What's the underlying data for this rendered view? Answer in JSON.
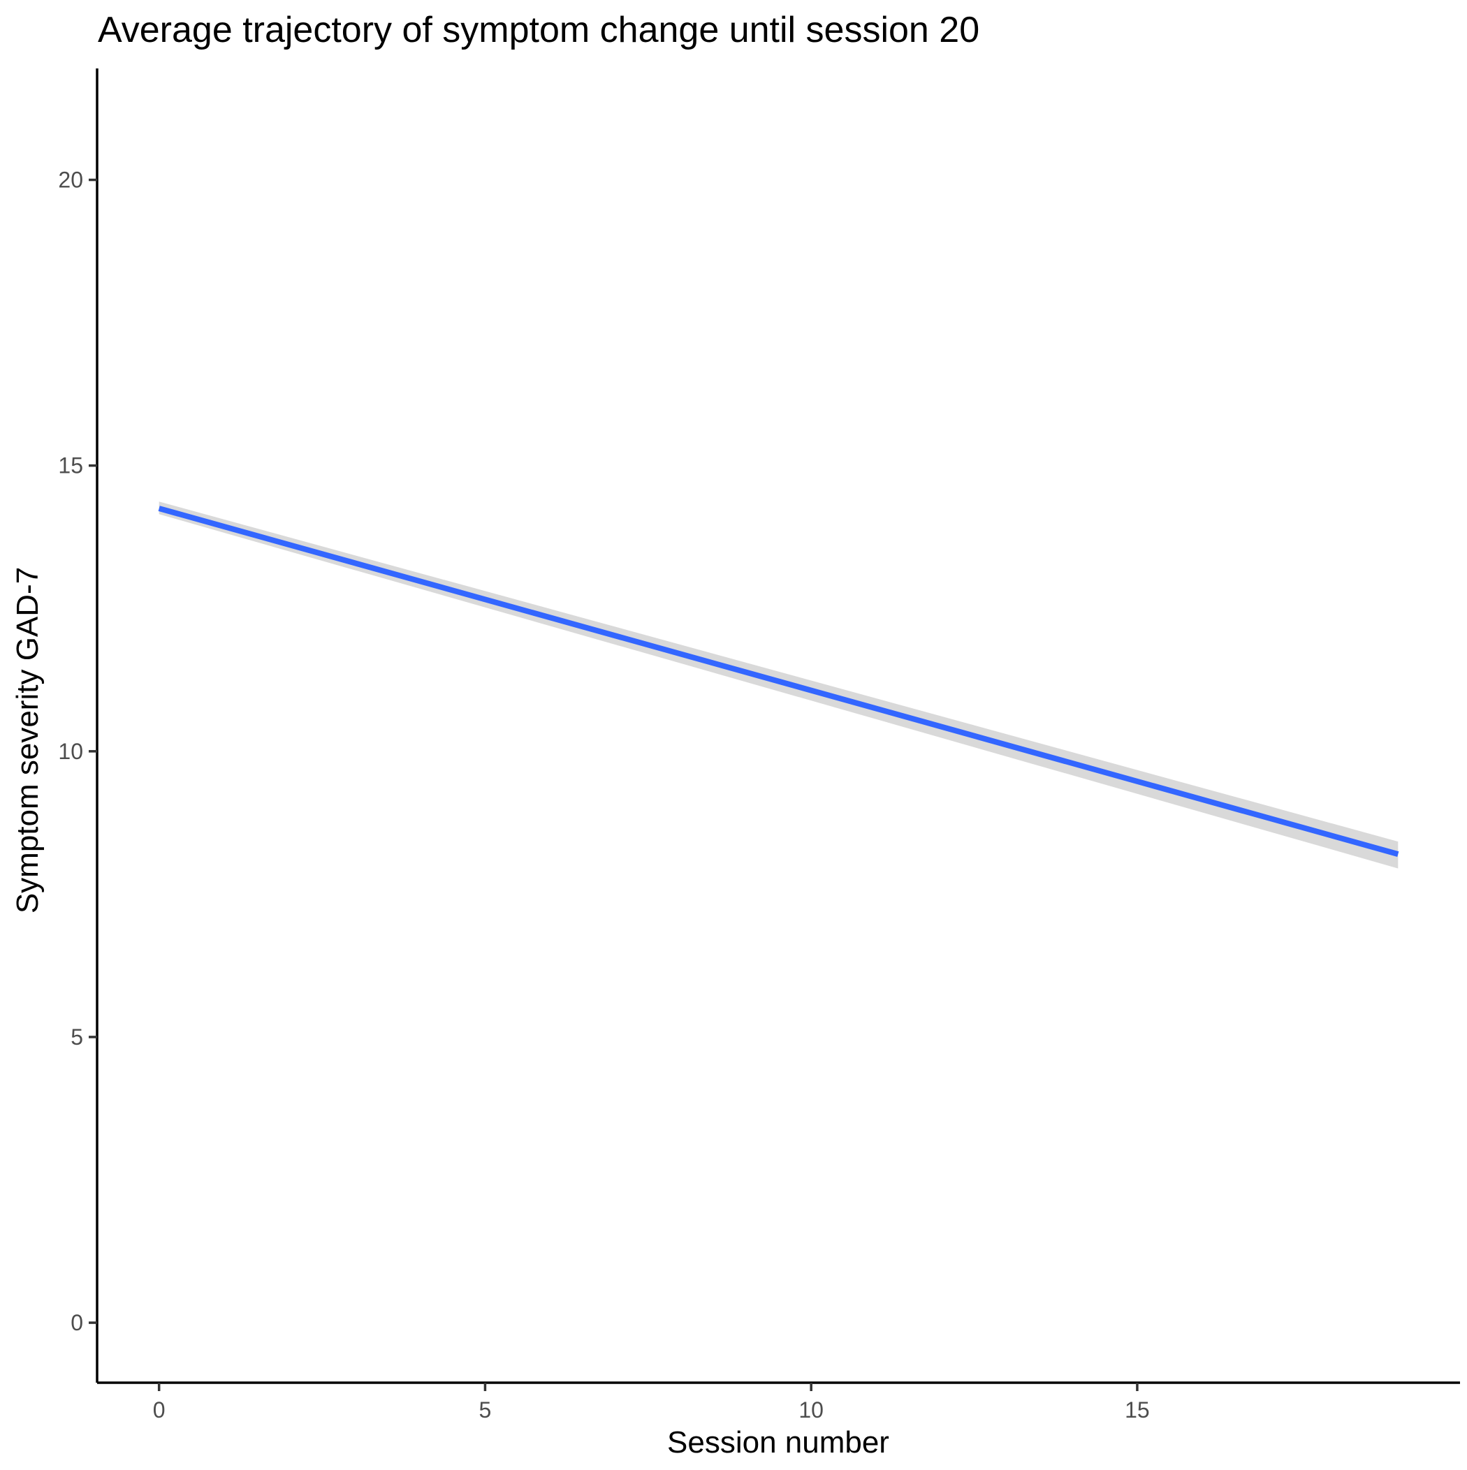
{
  "chart_data": {
    "type": "line",
    "title": "Average trajectory of symptom change until session 20",
    "xlabel": "Session number",
    "ylabel": "Symptom severity GAD-7",
    "xlim": [
      -0.95,
      19.95
    ],
    "ylim": [
      -1.05,
      21.95
    ],
    "x_ticks": [
      0,
      5,
      10,
      15
    ],
    "y_ticks": [
      0,
      5,
      10,
      15,
      20
    ],
    "grid": false,
    "legend": "none",
    "series": [
      {
        "x": [
          0,
          19
        ],
        "y": [
          14.25,
          8.2
        ],
        "ci_lower": [
          14.15,
          7.95
        ],
        "ci_upper": [
          14.37,
          8.42
        ]
      }
    ],
    "colors": {
      "line": "#3366FF",
      "ribbon": "#D9D9D9",
      "axis": "#000000",
      "tick_label": "#4D4D4D"
    }
  }
}
